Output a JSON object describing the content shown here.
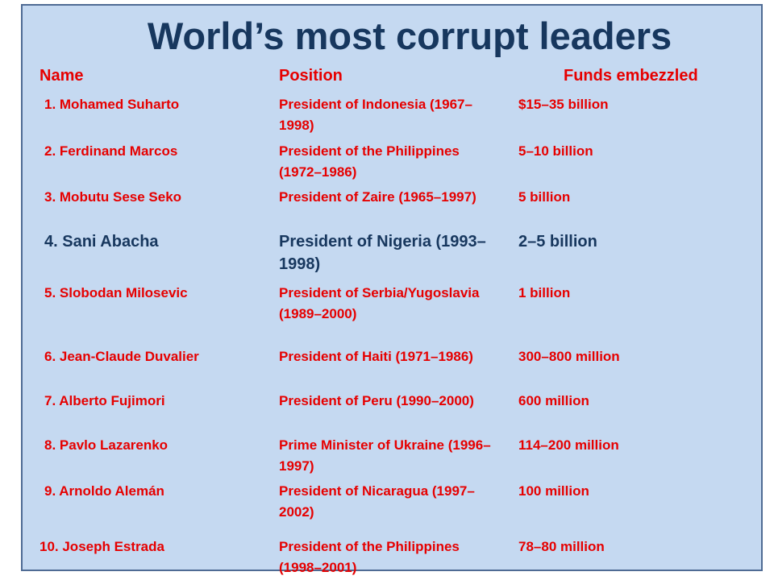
{
  "title": "World’s most corrupt leaders",
  "headers": {
    "name": "Name",
    "position": "Position",
    "funds": "Funds embezzled"
  },
  "colors": {
    "accent": "#e60000",
    "title": "#17375e",
    "background": "#c5d9f1"
  },
  "rows": [
    {
      "name": "1. Mohamed  Suharto",
      "position": "President of Indonesia (1967–1998)",
      "funds": "$15–35 billion"
    },
    {
      "name": "2. Ferdinand  Marcos",
      "position": "President of the Philippines (1972–1986)",
      "funds": "5–10 billion"
    },
    {
      "name": "3. Mobutu  Sese  Seko",
      "position": "President of Zaire (1965–1997)",
      "funds": "5 billion"
    },
    {
      "name": "4. Sani Abacha",
      "position": "President of Nigeria (1993–1998)",
      "funds": "2–5 billion"
    },
    {
      "name": "5. Slobodan  Milosevic",
      "position": "President of Serbia/Yugoslavia (1989–2000)",
      "funds": "1 billion"
    },
    {
      "name": "6. Jean-Claude  Duvalier",
      "position": "President of Haiti (1971–1986)",
      "funds": "300–800 million"
    },
    {
      "name": "7. Alberto  Fujimori",
      "position": "President of Peru (1990–2000)",
      "funds": "600 million"
    },
    {
      "name": "8. Pavlo  Lazarenko",
      "position": "Prime Minister of Ukraine (1996–1997)",
      "funds": "114–200 million"
    },
    {
      "name": "9. Arnoldo  Alemán",
      "position": "President of Nicaragua (1997–2002)",
      "funds": "100 million"
    },
    {
      "name": "10. Joseph  Estrada",
      "position": "President of the Philippines (1998–2001)",
      "funds": "78–80 million"
    }
  ]
}
